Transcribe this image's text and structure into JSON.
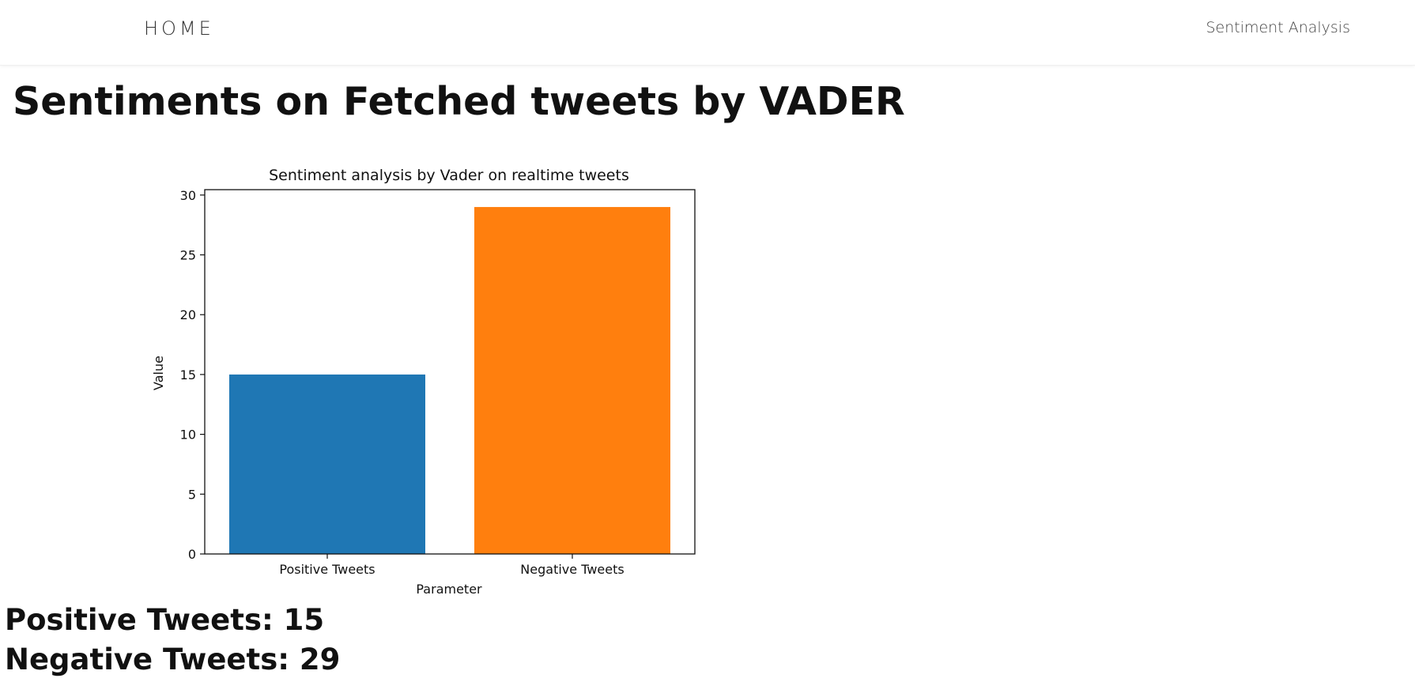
{
  "nav": {
    "home_label": "HOME",
    "link_label": "Sentiment Analysis"
  },
  "page": {
    "title": "Sentiments on Fetched tweets by VADER"
  },
  "chart_data": {
    "type": "bar",
    "title": "Sentiment analysis by Vader on realtime tweets",
    "xlabel": "Parameter",
    "ylabel": "Value",
    "categories": [
      "Positive Tweets",
      "Negative Tweets"
    ],
    "values": [
      15,
      29
    ],
    "colors": [
      "#1f77b4",
      "#ff7f0e"
    ],
    "ylim": [
      0,
      30.45
    ],
    "yticks": [
      0,
      5,
      10,
      15,
      20,
      25,
      30
    ],
    "grid": false
  },
  "summary": {
    "positive_label": "Positive Tweets: 15",
    "negative_label": "Negative Tweets: 29"
  }
}
